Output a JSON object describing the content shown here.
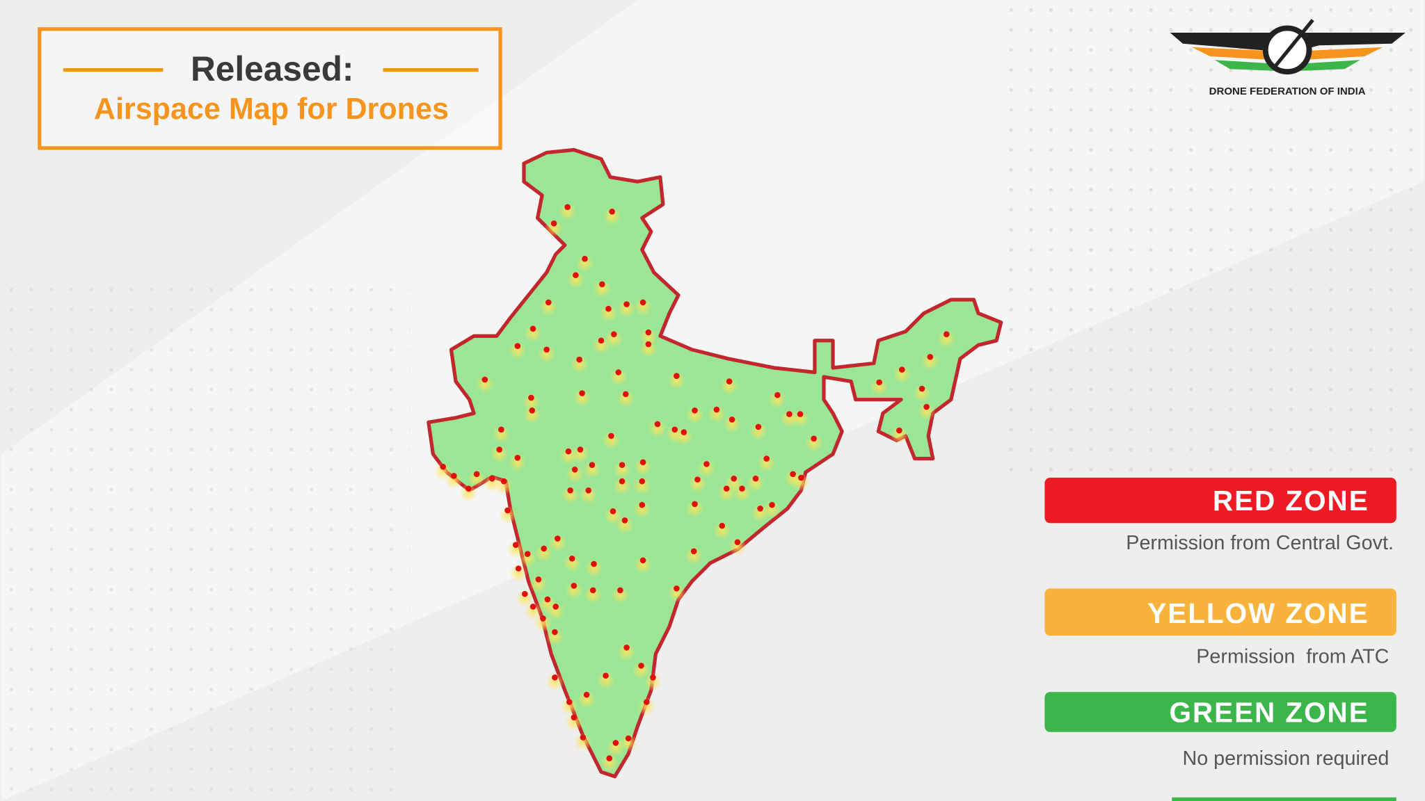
{
  "header": {
    "title": "Released:",
    "subtitle": "Airspace Map for Drones"
  },
  "logo": {
    "text": "DRONE FEDERATION OF INDIA"
  },
  "legend": [
    {
      "zone": "RED ZONE",
      "description": "Permission from Central Govt."
    },
    {
      "zone": "YELLOW ZONE",
      "description": "Permission  from ATC"
    },
    {
      "zone": "GREEN ZONE",
      "description": "No permission required"
    }
  ]
}
